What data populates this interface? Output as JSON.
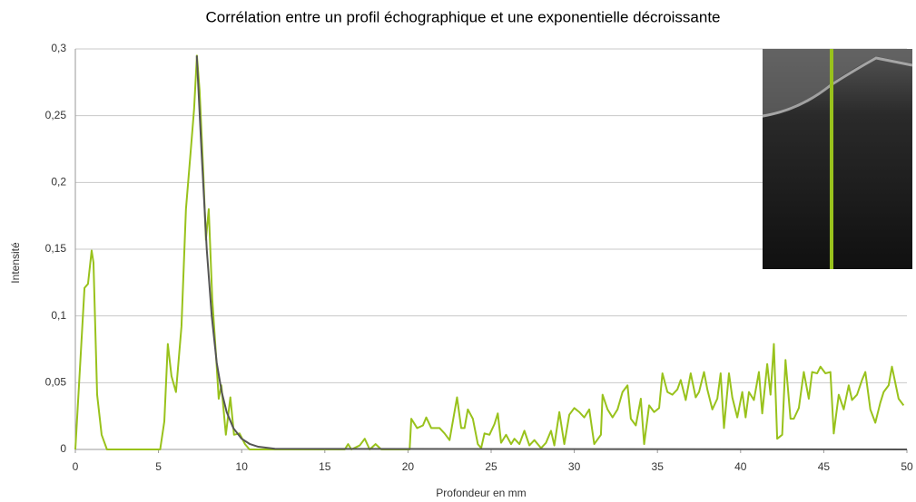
{
  "chart_data": {
    "type": "line",
    "title": "Corrélation entre un profil échographique et une exponentielle décroissante",
    "x_label": "Profondeur en mm",
    "y_label": "Intensité",
    "xlim": [
      0,
      50
    ],
    "xticks": [
      0,
      5,
      10,
      15,
      20,
      25,
      30,
      35,
      40,
      45,
      50
    ],
    "ylim": [
      0,
      0.3
    ],
    "yticks": [
      0,
      {
        "value": 0.05,
        "label": "0,05"
      },
      {
        "value": 0.1,
        "label": "0,1"
      },
      {
        "value": 0.15,
        "label": "0,15"
      },
      {
        "value": 0.2,
        "label": "0,2"
      },
      {
        "value": 0.25,
        "label": "0,25"
      },
      {
        "value": 0.3,
        "label": "0,3"
      }
    ],
    "grid": true,
    "series": [
      {
        "color": "#99c21c",
        "x": [
          0,
          0.55,
          0.76,
          0.98,
          1.09,
          1.31,
          1.58,
          1.9,
          5.1,
          5.35,
          5.56,
          5.78,
          6.05,
          6.38,
          6.65,
          6.92,
          7.14,
          7.31,
          7.47,
          7.69,
          7.85,
          8.02,
          8.23,
          8.45,
          8.62,
          8.78,
          9.05,
          9.32,
          9.54,
          9.87,
          10.2,
          10.47,
          16.2,
          16.4,
          16.6,
          17.1,
          17.4,
          17.7,
          18.05,
          18.4,
          20.1,
          20.2,
          20.55,
          20.9,
          21.1,
          21.4,
          21.9,
          22.2,
          22.5,
          22.95,
          23.2,
          23.4,
          23.6,
          23.9,
          24.2,
          24.4,
          24.6,
          24.9,
          25.2,
          25.4,
          25.6,
          25.9,
          26.2,
          26.4,
          26.7,
          27,
          27.3,
          27.6,
          28,
          28.3,
          28.6,
          28.8,
          29.1,
          29.4,
          29.7,
          30,
          30.3,
          30.6,
          30.9,
          31.2,
          31.6,
          31.7,
          32,
          32.3,
          32.6,
          32.9,
          33.2,
          33.4,
          33.7,
          34,
          34.2,
          34.5,
          34.8,
          35.1,
          35.3,
          35.6,
          35.9,
          36.2,
          36.4,
          36.7,
          37,
          37.3,
          37.5,
          37.8,
          38,
          38.3,
          38.6,
          38.8,
          39,
          39.3,
          39.5,
          39.8,
          40.1,
          40.3,
          40.5,
          40.8,
          41.1,
          41.3,
          41.6,
          41.8,
          42,
          42.2,
          42.5,
          42.7,
          43,
          43.2,
          43.5,
          43.8,
          44.1,
          44.3,
          44.6,
          44.8,
          45.1,
          45.4,
          45.6,
          45.9,
          46.2,
          46.5,
          46.7,
          47,
          47.3,
          47.5,
          47.8,
          48.1,
          48.4,
          48.6,
          48.9,
          49.1,
          49.5,
          49.8
        ],
        "values": [
          0,
          0.121,
          0.124,
          0.149,
          0.14,
          0.041,
          0.011,
          0,
          0,
          0.021,
          0.079,
          0.055,
          0.043,
          0.092,
          0.18,
          0.221,
          0.255,
          0.295,
          0.269,
          0.208,
          0.157,
          0.18,
          0.113,
          0.072,
          0.038,
          0.048,
          0.011,
          0.039,
          0.011,
          0.012,
          0.004,
          0,
          0,
          0.004,
          0,
          0.003,
          0.008,
          0,
          0.004,
          0,
          0,
          0.023,
          0.016,
          0.018,
          0.024,
          0.016,
          0.016,
          0.012,
          0.007,
          0.039,
          0.016,
          0.016,
          0.03,
          0.023,
          0.004,
          0.001,
          0.012,
          0.011,
          0.019,
          0.027,
          0.005,
          0.011,
          0.004,
          0.008,
          0.004,
          0.014,
          0.003,
          0.007,
          0.001,
          0.005,
          0.014,
          0.003,
          0.028,
          0.004,
          0.026,
          0.031,
          0.028,
          0.024,
          0.03,
          0.004,
          0.011,
          0.041,
          0.03,
          0.024,
          0.03,
          0.043,
          0.048,
          0.023,
          0.018,
          0.038,
          0.004,
          0.033,
          0.028,
          0.031,
          0.057,
          0.043,
          0.041,
          0.045,
          0.052,
          0.037,
          0.057,
          0.039,
          0.043,
          0.058,
          0.045,
          0.03,
          0.038,
          0.057,
          0.016,
          0.057,
          0.039,
          0.024,
          0.043,
          0.024,
          0.043,
          0.037,
          0.058,
          0.027,
          0.064,
          0.041,
          0.079,
          0.008,
          0.011,
          0.067,
          0.023,
          0.023,
          0.031,
          0.058,
          0.038,
          0.058,
          0.057,
          0.062,
          0.057,
          0.058,
          0.012,
          0.041,
          0.03,
          0.048,
          0.037,
          0.041,
          0.052,
          0.058,
          0.03,
          0.02,
          0.035,
          0.043,
          0.048,
          0.062,
          0.038,
          0.033
        ]
      },
      {
        "color": "#555555",
        "x": [
          7.3,
          7.6,
          7.9,
          8.2,
          8.5,
          8.8,
          9.1,
          9.5,
          10,
          10.5,
          11,
          12,
          50
        ],
        "values": [
          0.295,
          0.22,
          0.15,
          0.1,
          0.065,
          0.043,
          0.028,
          0.016,
          0.008,
          0.004,
          0.002,
          0.0005,
          0
        ]
      }
    ]
  }
}
